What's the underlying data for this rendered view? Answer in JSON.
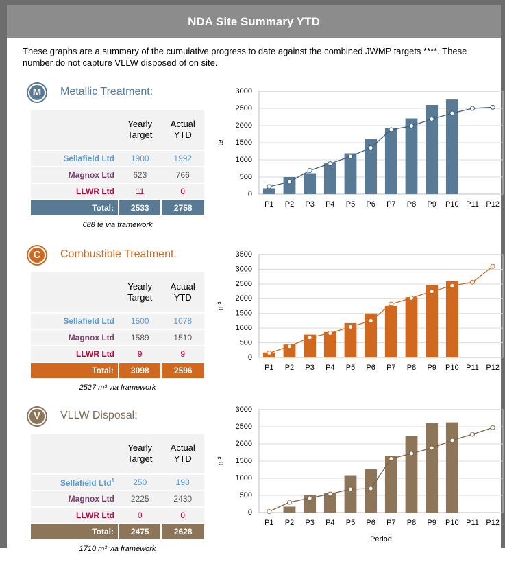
{
  "header": {
    "title": "NDA Site Summary YTD"
  },
  "intro": "These graphs are a summary of the cumulative progress to date against the combined JWMP targets ****. These number do not capture VLLW disposed of on site.",
  "sections": [
    {
      "icon": "M",
      "title": "Metallic Treatment:",
      "color": "#587a94",
      "title_color": "#4f7ba8",
      "col_headers": [
        "Yearly Target",
        "Actual YTD"
      ],
      "rows": [
        {
          "name": "Sellafield Ltd",
          "target": 1900,
          "actual": 1992
        },
        {
          "name": "Magnox Ltd",
          "target": 623,
          "actual": 766
        },
        {
          "name": "LLWR Ltd",
          "target": 11,
          "actual": 0
        }
      ],
      "total": {
        "label": "Total:",
        "target": 2533,
        "actual": 2758
      },
      "footnote": "688 te via framework"
    },
    {
      "icon": "C",
      "title": "Combustible Treatment:",
      "color": "#d0691f",
      "title_color": "#d0691f",
      "col_headers": [
        "Yearly Target",
        "Actual YTD"
      ],
      "rows": [
        {
          "name": "Sellafield Ltd",
          "target": 1500,
          "actual": 1078
        },
        {
          "name": "Magnox Ltd",
          "target": 1589,
          "actual": 1510
        },
        {
          "name": "LLWR Ltd",
          "target": 9,
          "actual": 9
        }
      ],
      "total": {
        "label": "Total:",
        "target": 3098,
        "actual": 2596
      },
      "footnote": "2527 m³ via framework"
    },
    {
      "icon": "V",
      "title": "VLLW Disposal:",
      "color": "#8c7558",
      "title_color": "#7d6a55",
      "col_headers": [
        "Yearly Target",
        "Actual YTD"
      ],
      "rows": [
        {
          "name": "Sellafield Ltd",
          "note": "1",
          "target": 250,
          "actual": 198
        },
        {
          "name": "Magnox Ltd",
          "target": 2225,
          "actual": 2430
        },
        {
          "name": "LLWR Ltd",
          "target": 0,
          "actual": 0
        }
      ],
      "total": {
        "label": "Total:",
        "target": 2475,
        "actual": 2628
      },
      "footnote": "1710 m³ via framework"
    }
  ],
  "chart_data": [
    {
      "type": "bar",
      "y_label": "te",
      "categories": [
        "P1",
        "P2",
        "P3",
        "P4",
        "P5",
        "P6",
        "P7",
        "P8",
        "P9",
        "P10",
        "P11",
        "P12"
      ],
      "series": [
        {
          "type": "bar",
          "color": "#587a94",
          "values": [
            170,
            500,
            610,
            900,
            1190,
            1610,
            1930,
            2210,
            2600,
            2758,
            null,
            null
          ]
        },
        {
          "type": "line",
          "color": "#3f5f80",
          "values": [
            220,
            360,
            690,
            890,
            1100,
            1350,
            1880,
            1990,
            2190,
            2360,
            2500,
            2533
          ]
        }
      ],
      "ylim": [
        0,
        3000
      ],
      "yticks": [
        0,
        500,
        1000,
        1500,
        2000,
        2500,
        3000
      ],
      "grid": true
    },
    {
      "type": "bar",
      "y_label": "m³",
      "categories": [
        "P1",
        "P2",
        "P3",
        "P4",
        "P5",
        "P6",
        "P7",
        "P8",
        "P9",
        "P10",
        "P11",
        "P12"
      ],
      "series": [
        {
          "type": "bar",
          "color": "#d0691f",
          "values": [
            170,
            440,
            780,
            870,
            1170,
            1500,
            1750,
            2050,
            2450,
            2596,
            null,
            null
          ]
        },
        {
          "type": "line",
          "color": "#d0691f",
          "values": [
            150,
            380,
            680,
            830,
            1040,
            1250,
            1820,
            2020,
            2250,
            2440,
            2560,
            3098
          ]
        }
      ],
      "ylim": [
        0,
        3500
      ],
      "yticks": [
        0,
        500,
        1000,
        1500,
        2000,
        2500,
        3000,
        3500
      ],
      "grid": true
    },
    {
      "type": "bar",
      "y_label": "m³",
      "x_label": "Period",
      "categories": [
        "P1",
        "P2",
        "P3",
        "P4",
        "P5",
        "P6",
        "P7",
        "P8",
        "P9",
        "P10",
        "P11",
        "P12"
      ],
      "series": [
        {
          "type": "bar",
          "color": "#8c7558",
          "values": [
            0,
            170,
            500,
            560,
            1070,
            1260,
            1660,
            2220,
            2600,
            2628,
            null,
            null
          ]
        },
        {
          "type": "line",
          "color": "#7d6448",
          "values": [
            30,
            300,
            420,
            540,
            680,
            700,
            1570,
            1720,
            1880,
            2100,
            2280,
            2475
          ]
        }
      ],
      "ylim": [
        0,
        3000
      ],
      "yticks": [
        0,
        500,
        1000,
        1500,
        2000,
        2500,
        3000
      ],
      "grid": true
    }
  ]
}
